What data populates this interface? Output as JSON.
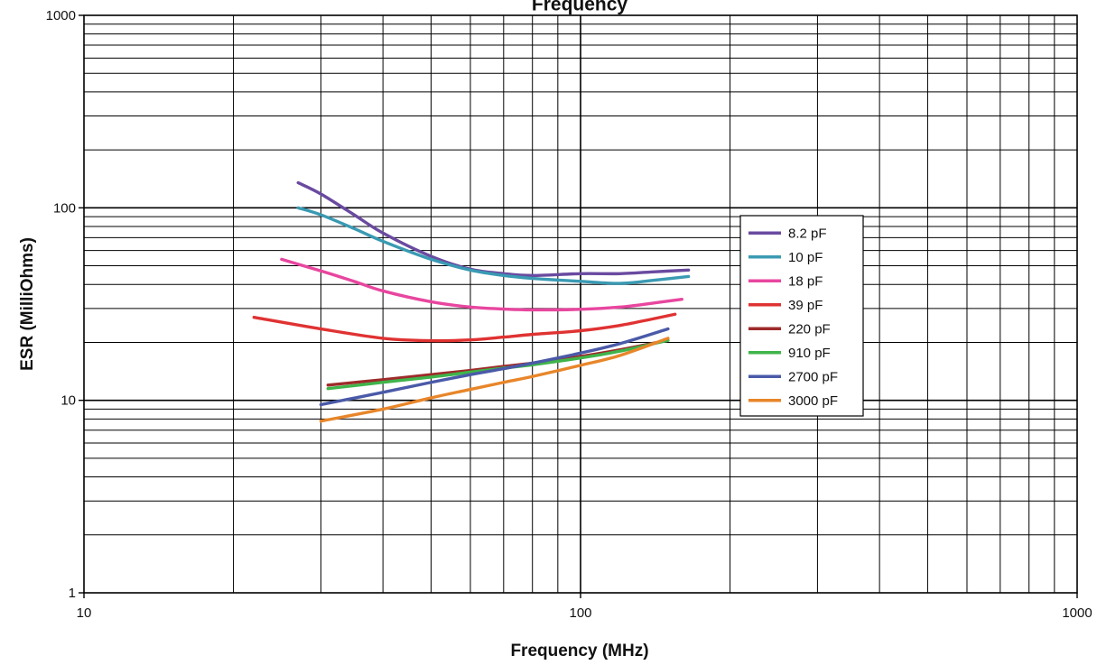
{
  "chart_data": {
    "type": "line",
    "title": "Frequency",
    "xlabel": "Frequency (MHz)",
    "ylabel": "ESR (MilliOhms)",
    "x_scale": "log",
    "y_scale": "log",
    "xlim": [
      10,
      1000
    ],
    "ylim": [
      1,
      1000
    ],
    "x_ticks": [
      "10",
      "100",
      "1000"
    ],
    "y_ticks": [
      "1",
      "10",
      "100",
      "1000"
    ],
    "grid": true,
    "legend_position": "right",
    "series": [
      {
        "name": "8.2 pF",
        "color": "#6a4aa0",
        "x": [
          27,
          30,
          35,
          40,
          50,
          60,
          70,
          80,
          100,
          120,
          140,
          165
        ],
        "y": [
          135,
          118,
          92,
          74,
          56,
          48,
          45.5,
          44.5,
          45.5,
          45.5,
          46.5,
          47.5
        ]
      },
      {
        "name": "10 pF",
        "color": "#3a9ab3",
        "x": [
          27,
          30,
          35,
          40,
          50,
          60,
          70,
          80,
          100,
          120,
          140,
          165
        ],
        "y": [
          100,
          92,
          78,
          67,
          54,
          47.5,
          44.5,
          43,
          41.5,
          40.5,
          42,
          44
        ]
      },
      {
        "name": "18 pF",
        "color": "#e8469f",
        "x": [
          25,
          30,
          35,
          40,
          50,
          60,
          70,
          80,
          100,
          120,
          140,
          160
        ],
        "y": [
          54,
          47,
          41.5,
          37,
          32.5,
          30.5,
          29.8,
          29.5,
          29.7,
          30.5,
          32,
          33.5
        ]
      },
      {
        "name": "39 pF",
        "color": "#e03232",
        "x": [
          22,
          30,
          40,
          50,
          60,
          70,
          80,
          100,
          120,
          140,
          155
        ],
        "y": [
          27,
          23.5,
          21,
          20.4,
          20.6,
          21.3,
          22,
          23,
          24.5,
          26.5,
          28
        ]
      },
      {
        "name": "220 pF",
        "color": "#9e2a2a",
        "x": [
          31,
          40,
          50,
          60,
          70,
          80,
          100,
          120,
          150
        ],
        "y": [
          12,
          12.8,
          13.6,
          14.3,
          15,
          15.6,
          16.9,
          18.3,
          20.5
        ]
      },
      {
        "name": "910 pF",
        "color": "#3fb44a",
        "x": [
          31,
          40,
          50,
          60,
          70,
          80,
          100,
          120,
          150
        ],
        "y": [
          11.5,
          12.4,
          13.2,
          14,
          14.7,
          15.3,
          16.6,
          18,
          20.5
        ]
      },
      {
        "name": "2700 pF",
        "color": "#4a5aa8",
        "x": [
          30,
          40,
          50,
          60,
          70,
          80,
          100,
          120,
          150
        ],
        "y": [
          9.5,
          11,
          12.4,
          13.6,
          14.6,
          15.6,
          17.6,
          19.7,
          23.5
        ]
      },
      {
        "name": "3000 pF",
        "color": "#e8862a",
        "x": [
          30,
          40,
          50,
          60,
          70,
          80,
          100,
          120,
          150
        ],
        "y": [
          7.8,
          9,
          10.3,
          11.4,
          12.4,
          13.3,
          15.2,
          17.1,
          21
        ]
      }
    ]
  }
}
